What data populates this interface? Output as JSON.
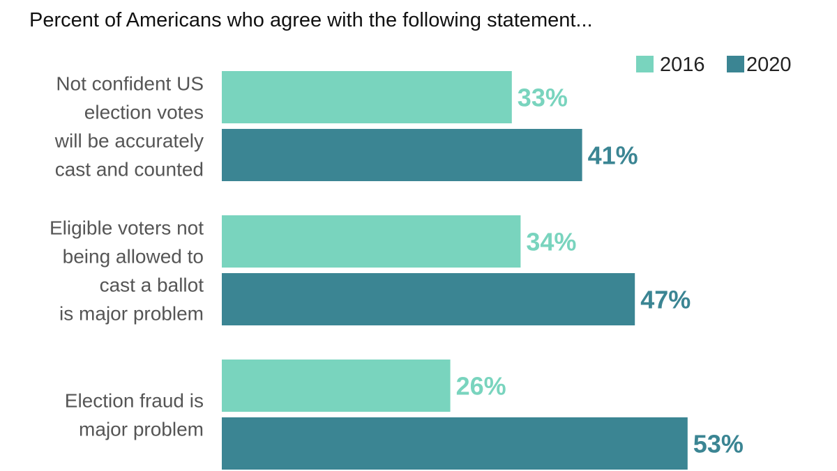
{
  "chart_data": {
    "type": "bar",
    "orientation": "horizontal",
    "title": "Percent of Americans who agree with the following statement...",
    "categories": [
      [
        "Not confident US",
        "election votes",
        "will be accurately",
        "cast and counted"
      ],
      [
        "Eligible voters not",
        "being allowed to",
        "cast a ballot",
        "is major problem"
      ],
      [
        "Election fraud is",
        "major problem"
      ]
    ],
    "series": [
      {
        "name": "2016",
        "color": "#79d4be",
        "values": [
          33,
          34,
          26
        ],
        "labels": [
          "33%",
          "34%",
          "26%"
        ]
      },
      {
        "name": "2020",
        "color": "#3b8593",
        "values": [
          41,
          47,
          53
        ],
        "labels": [
          "41%",
          "47%",
          "53%"
        ]
      }
    ],
    "xlim": [
      0,
      100
    ],
    "grid": false,
    "legend": "top-right"
  }
}
